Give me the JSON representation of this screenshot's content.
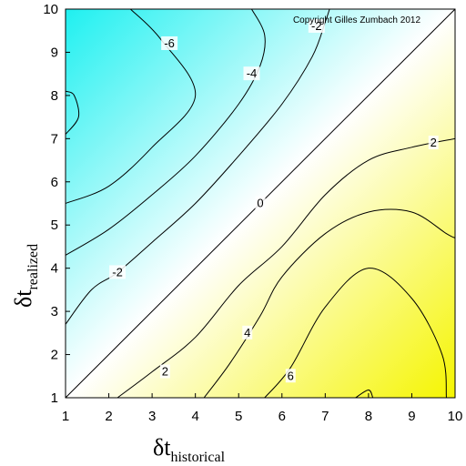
{
  "chart_data": {
    "type": "contour",
    "annotation": "Copyright Gilles Zumbach 2012",
    "xlabel": {
      "symbol": "δt",
      "subscript": "historical"
    },
    "ylabel": {
      "symbol": "δt",
      "subscript": "realized"
    },
    "xlim": [
      1,
      10
    ],
    "ylim": [
      1,
      10
    ],
    "xticks": [
      "1",
      "2",
      "3",
      "4",
      "5",
      "6",
      "7",
      "8",
      "9",
      "10"
    ],
    "yticks": [
      "1",
      "2",
      "3",
      "4",
      "5",
      "6",
      "7",
      "8",
      "9",
      "10"
    ],
    "colormap": {
      "low": "#1ff0f0",
      "mid": "#ffffff",
      "high": "#f5f500"
    },
    "levels": [
      {
        "level": -6,
        "points": [
          [
            1,
            8.1
          ],
          [
            1.2,
            8.0
          ],
          [
            1.3,
            7.5
          ],
          [
            1,
            7.1
          ]
        ]
      },
      {
        "level": -4,
        "points": [
          [
            1,
            5.5
          ],
          [
            2,
            5.9
          ],
          [
            3,
            6.8
          ],
          [
            4,
            8.0
          ],
          [
            3.2,
            9.3
          ],
          [
            2.5,
            10
          ]
        ]
      },
      {
        "level": -2,
        "points": [
          [
            1,
            4.3
          ],
          [
            2,
            4.9
          ],
          [
            3,
            5.7
          ],
          [
            4,
            6.6
          ],
          [
            5,
            7.8
          ],
          [
            5.5,
            8.7
          ],
          [
            5.6,
            9.4
          ],
          [
            5.3,
            10
          ]
        ]
      },
      {
        "level": -2,
        "points": [
          [
            1,
            2.7
          ],
          [
            1.6,
            3.5
          ],
          [
            2.2,
            3.9
          ],
          [
            3,
            4.6
          ],
          [
            4,
            5.5
          ],
          [
            5,
            6.6
          ],
          [
            6,
            7.8
          ],
          [
            6.7,
            8.9
          ],
          [
            7,
            9.7
          ],
          [
            7.1,
            10
          ]
        ]
      },
      {
        "level": 0,
        "points": [
          [
            1,
            1
          ],
          [
            10,
            10
          ]
        ]
      },
      {
        "level": 2,
        "points": [
          [
            2.2,
            1
          ],
          [
            3,
            1.6
          ],
          [
            4,
            2.4
          ],
          [
            5,
            3.6
          ],
          [
            6,
            4.5
          ],
          [
            7,
            5.7
          ],
          [
            8,
            6.5
          ],
          [
            9,
            6.8
          ],
          [
            10,
            7.0
          ]
        ]
      },
      {
        "level": 4,
        "points": [
          [
            4.2,
            1
          ],
          [
            4.8,
            1.8
          ],
          [
            5.5,
            2.9
          ],
          [
            6,
            3.8
          ],
          [
            7,
            4.8
          ],
          [
            8,
            5.3
          ],
          [
            9,
            5.3
          ],
          [
            9.8,
            4.8
          ],
          [
            10,
            4.7
          ]
        ]
      },
      {
        "level": 6,
        "points": [
          [
            5.6,
            1
          ],
          [
            6.2,
            1.7
          ],
          [
            7,
            3.1
          ],
          [
            8,
            4.0
          ],
          [
            9,
            3.3
          ],
          [
            9.7,
            2.0
          ],
          [
            9.8,
            1
          ]
        ]
      },
      {
        "level": 8,
        "points": [
          [
            7.7,
            1
          ],
          [
            8,
            1.18
          ],
          [
            8.1,
            1
          ]
        ]
      }
    ],
    "contour_labels": [
      {
        "text": "-6",
        "x": 3.4,
        "y": 9.2
      },
      {
        "text": "-4",
        "x": 5.3,
        "y": 8.5
      },
      {
        "text": "-2",
        "x": 6.8,
        "y": 9.6
      },
      {
        "text": "-2",
        "x": 2.2,
        "y": 3.9
      },
      {
        "text": "0",
        "x": 5.5,
        "y": 5.5
      },
      {
        "text": "2",
        "x": 9.5,
        "y": 6.9
      },
      {
        "text": "2",
        "x": 3.3,
        "y": 1.6
      },
      {
        "text": "4",
        "x": 5.2,
        "y": 2.5
      },
      {
        "text": "6",
        "x": 6.2,
        "y": 1.5
      }
    ]
  }
}
